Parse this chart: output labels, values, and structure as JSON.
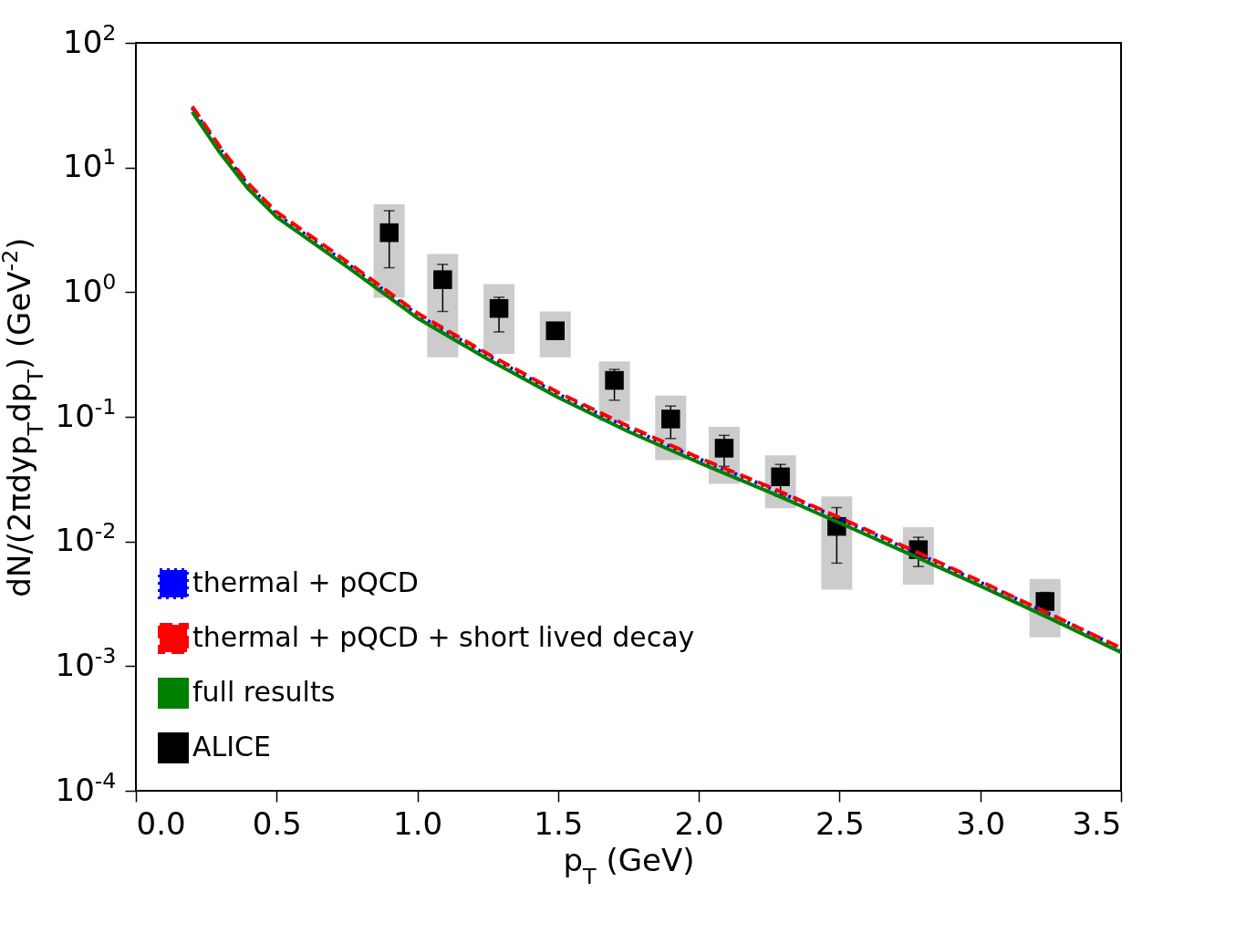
{
  "chart_data": {
    "type": "line",
    "xlabel": "p$_{T}$ (GeV)",
    "ylabel": "dN/(2πdyp$_{T}$dp$_{T}$) (GeV$^{-2}$)",
    "log": "y",
    "grid": false,
    "legend": "bottom left",
    "xlim": [
      0,
      3.5
    ],
    "ylim": [
      0.0001,
      100
    ],
    "xticks": [
      {
        "value": 0,
        "label": "0.0"
      },
      {
        "value": 0.5,
        "label": "0.5"
      },
      {
        "value": 1,
        "label": "1.0"
      },
      {
        "value": 1.5,
        "label": "1.5"
      },
      {
        "value": 2,
        "label": "2.0"
      },
      {
        "value": 2.5,
        "label": "2.5"
      },
      {
        "value": 3,
        "label": "3.0"
      },
      {
        "value": 3.5,
        "label": "3.5"
      }
    ],
    "yticks": [
      {
        "value": 0.0001,
        "label": "10$^{-4}$"
      },
      {
        "value": 0.001,
        "label": "10$^{-3}$"
      },
      {
        "value": 0.01,
        "label": "10$^{-2}$"
      },
      {
        "value": 0.1,
        "label": "10$^{-1}$"
      },
      {
        "value": 1,
        "label": "10$^{0}$"
      },
      {
        "value": 10,
        "label": "10$^{1}$"
      },
      {
        "value": 100,
        "label": "10$^{2}$"
      }
    ],
    "series": [
      {
        "type": "bar",
        "color": "#cccccc",
        "x": [
          0.9,
          1.09,
          1.29,
          1.49,
          1.7,
          1.9,
          2.09,
          2.29,
          2.49,
          2.78,
          3.23
        ],
        "base": [
          0.9,
          0.3,
          0.32,
          0.3,
          0.092,
          0.045,
          0.029,
          0.0185,
          0.0041,
          0.0045,
          0.0017
        ],
        "values": [
          4.17,
          1.72,
          0.84,
          0.4,
          0.186,
          0.103,
          0.054,
          0.0305,
          0.0189,
          0.0085,
          0.0033
        ]
      },
      {
        "name": "thermal + pQCD",
        "color": "#0000ff",
        "line_style": "dotted",
        "x": [
          0.2,
          0.3,
          0.4,
          0.5,
          0.75,
          1,
          1.25,
          1.5,
          1.75,
          2,
          2.25,
          2.5,
          2.75,
          3,
          3.25,
          3.5
        ],
        "values": [
          30,
          14,
          7.2,
          4.2,
          1.7,
          0.66,
          0.31,
          0.152,
          0.081,
          0.046,
          0.027,
          0.0152,
          0.0085,
          0.0047,
          0.0026,
          0.00138
        ]
      },
      {
        "name": "thermal + pQCD + short lived decay",
        "color": "#ff0000",
        "line_style": "dashed",
        "x": [
          0.2,
          0.3,
          0.4,
          0.5,
          0.75,
          1,
          1.25,
          1.5,
          1.75,
          2,
          2.25,
          2.5,
          2.75,
          3,
          3.25,
          3.5
        ],
        "values": [
          31,
          14.5,
          7.4,
          4.4,
          1.76,
          0.68,
          0.32,
          0.157,
          0.084,
          0.047,
          0.0275,
          0.0155,
          0.0087,
          0.0048,
          0.0026,
          0.0014
        ]
      },
      {
        "name": "full results",
        "color": "#008000",
        "line_style": "solid",
        "x": [
          0.2,
          0.3,
          0.4,
          0.5,
          0.75,
          1,
          1.25,
          1.5,
          1.75,
          2,
          2.25,
          2.5,
          2.75,
          3,
          3.25,
          3.5
        ],
        "values": [
          28,
          13,
          6.7,
          4.0,
          1.6,
          0.62,
          0.29,
          0.143,
          0.076,
          0.043,
          0.025,
          0.0141,
          0.0079,
          0.0044,
          0.0024,
          0.00129
        ]
      },
      {
        "type": "scatter",
        "name": "ALICE",
        "color": "#000000",
        "marker": "square",
        "x": [
          0.9,
          1.09,
          1.29,
          1.49,
          1.7,
          1.9,
          2.09,
          2.29,
          2.49,
          2.78,
          3.23
        ],
        "values": [
          3.0,
          1.26,
          0.74,
          0.49,
          0.196,
          0.096,
          0.056,
          0.033,
          0.0132,
          0.0086,
          0.0033
        ],
        "errors": [
          [
            1.57,
            4.5
          ],
          [
            0.7,
            1.67
          ],
          [
            0.48,
            0.91
          ],
          null,
          [
            0.136,
            0.24
          ],
          [
            0.067,
            0.122
          ],
          [
            0.04,
            0.071
          ],
          [
            0.023,
            0.0415
          ],
          [
            0.0067,
            0.0187
          ],
          [
            0.0063,
            0.0108
          ],
          [
            0.0026,
            0.0039
          ]
        ]
      }
    ]
  }
}
